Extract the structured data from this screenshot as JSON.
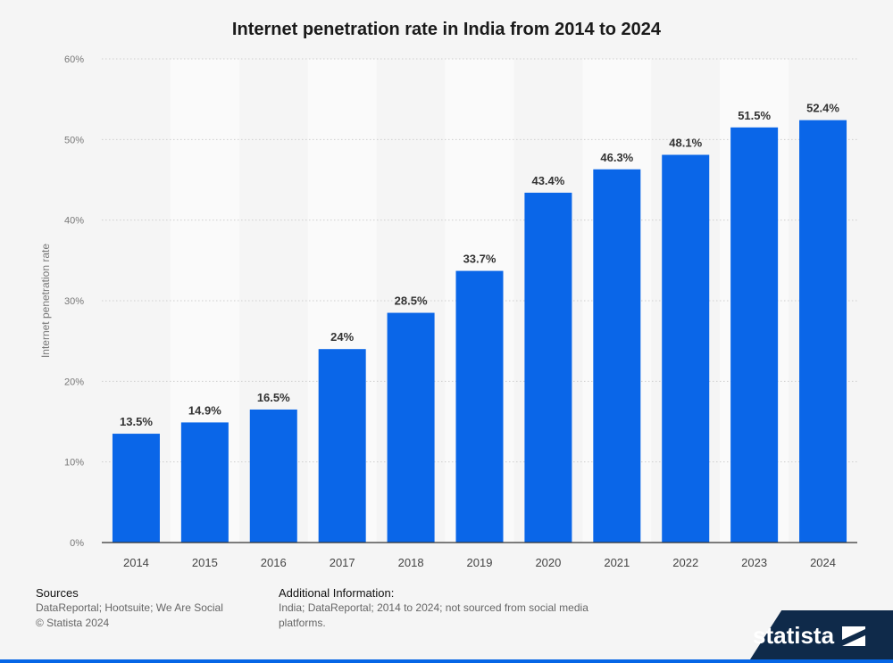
{
  "title": "Internet penetration rate in India from 2014 to 2024",
  "chart_data": {
    "type": "bar",
    "title": "Internet penetration rate in India from 2014 to 2024",
    "categories": [
      "2014",
      "2015",
      "2016",
      "2017",
      "2018",
      "2019",
      "2020",
      "2021",
      "2022",
      "2023",
      "2024"
    ],
    "values": [
      13.5,
      14.9,
      16.5,
      24,
      28.5,
      33.7,
      43.4,
      46.3,
      48.1,
      51.5,
      52.4
    ],
    "value_labels": [
      "13.5%",
      "14.9%",
      "16.5%",
      "24%",
      "28.5%",
      "33.7%",
      "43.4%",
      "46.3%",
      "48.1%",
      "51.5%",
      "52.4%"
    ],
    "xlabel": "",
    "ylabel": "Internet penetration rate",
    "ylim": [
      0,
      60
    ],
    "yticks": [
      0,
      10,
      20,
      30,
      40,
      50,
      60
    ],
    "ytick_labels": [
      "0%",
      "10%",
      "20%",
      "30%",
      "40%",
      "50%",
      "60%"
    ],
    "grid": true,
    "bar_color": "#0a66e8"
  },
  "footer": {
    "sources_heading": "Sources",
    "sources_text": "DataReportal; Hootsuite; We Are Social",
    "copyright": "© Statista 2024",
    "additional_heading": "Additional Information:",
    "additional_text": "India; DataReportal; 2014 to 2024; not sourced from social media platforms."
  },
  "logo": {
    "text": "statista",
    "icon": "statista-logo-icon"
  }
}
